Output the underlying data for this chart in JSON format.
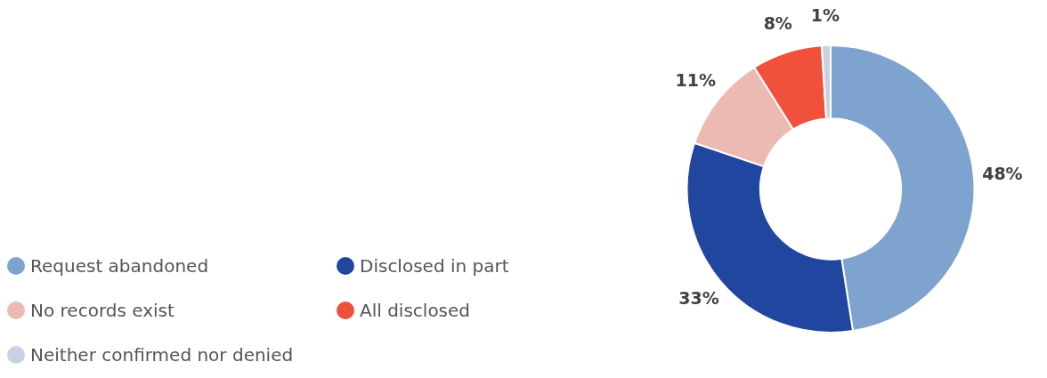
{
  "chart_data": {
    "type": "donut",
    "categories": [
      "Request abandoned",
      "Disclosed in part",
      "No records exist",
      "All disclosed",
      "Neither confirmed nor denied"
    ],
    "values": [
      48,
      33,
      11,
      8,
      1
    ],
    "colors": [
      "#7ea3cf",
      "#2146a0",
      "#ecb9b3",
      "#f0513a",
      "#c9d1e3"
    ],
    "value_labels": [
      "48%",
      "33%",
      "11%",
      "8%",
      "1%"
    ],
    "legend": "left"
  }
}
